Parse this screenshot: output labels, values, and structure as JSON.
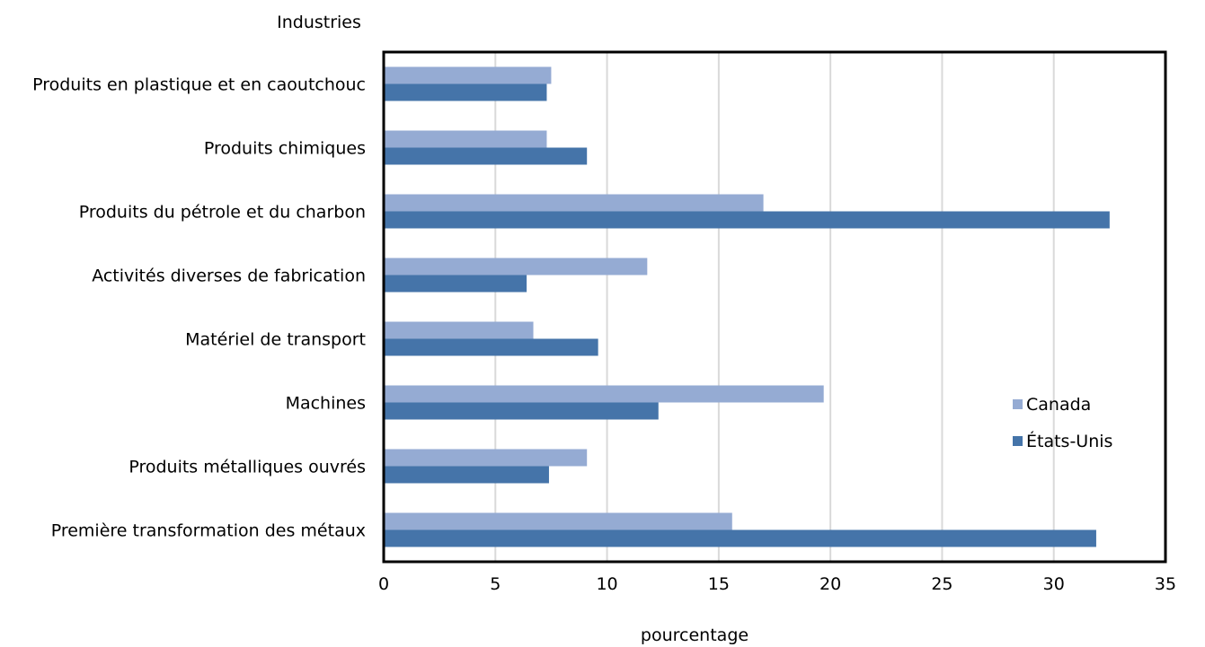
{
  "chart_data": {
    "type": "bar",
    "orientation": "horizontal",
    "y_axis_title": "Industries",
    "xlabel": "pourcentage",
    "xlim": [
      0,
      35
    ],
    "x_ticks": [
      0,
      5,
      10,
      15,
      20,
      25,
      30,
      35
    ],
    "grid": true,
    "legend_position": "right",
    "categories": [
      "Produits en plastique et en caoutchouc",
      "Produits chimiques",
      "Produits du pétrole et du charbon",
      "Activités diverses de fabrication",
      "Matériel de transport",
      "Machines",
      "Produits métalliques ouvrés",
      "Première transformation des métaux"
    ],
    "series": [
      {
        "name": "Canada",
        "color": "#95abd3",
        "values": [
          7.5,
          7.3,
          17.0,
          11.8,
          6.7,
          19.7,
          9.1,
          15.6
        ]
      },
      {
        "name": "États-Unis",
        "color": "#4574a9",
        "values": [
          7.3,
          9.1,
          32.5,
          6.4,
          9.6,
          12.3,
          7.4,
          31.9
        ]
      }
    ]
  }
}
